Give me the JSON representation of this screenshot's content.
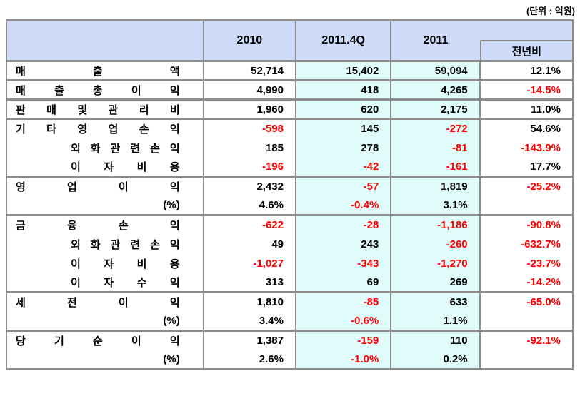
{
  "unit_note": "(단위 : 억원)",
  "header": {
    "label_col": "",
    "cols": [
      "2010",
      "2011.4Q",
      "2011"
    ],
    "yoy": "전년비"
  },
  "colors": {
    "header_bg": "#cedcfa",
    "highlight_column_bg": "#e0fcfa",
    "negative_text": "#ff0000",
    "border_gray": "#8c8c8c"
  },
  "rows": [
    {
      "label": "매출액",
      "type": "main",
      "sep": true,
      "values": [
        "52,714",
        "15,402",
        "59,094",
        "12.1%"
      ]
    },
    {
      "label": "매출총이익",
      "type": "main",
      "sep": true,
      "values": [
        "4,990",
        "418",
        "4,265",
        "-14.5%"
      ]
    },
    {
      "label": "판매및관리비",
      "type": "main",
      "sep": true,
      "values": [
        "1,960",
        "620",
        "2,175",
        "11.0%"
      ]
    },
    {
      "label": "기타영업손익",
      "type": "main",
      "sep": false,
      "values": [
        "-598",
        "145",
        "-272",
        "54.6%"
      ]
    },
    {
      "label": "외화관련손익",
      "type": "sub",
      "sep": false,
      "values": [
        "185",
        "278",
        "-81",
        "-143.9%"
      ]
    },
    {
      "label": "이자비용",
      "type": "sub",
      "sep": true,
      "values": [
        "-196",
        "-42",
        "-161",
        "17.7%"
      ]
    },
    {
      "label": "영업이익",
      "type": "main",
      "sep": false,
      "values": [
        "2,432",
        "-57",
        "1,819",
        "-25.2%"
      ]
    },
    {
      "label": "(%)",
      "type": "pct",
      "sep": true,
      "values": [
        "4.6%",
        "-0.4%",
        "3.1%",
        ""
      ]
    },
    {
      "label": "금융손익",
      "type": "main",
      "sep": false,
      "values": [
        "-622",
        "-28",
        "-1,186",
        "-90.8%"
      ]
    },
    {
      "label": "외화관련손익",
      "type": "sub",
      "sep": false,
      "values": [
        "49",
        "243",
        "-260",
        "-632.7%"
      ]
    },
    {
      "label": "이자비용",
      "type": "sub",
      "sep": false,
      "values": [
        "-1,027",
        "-343",
        "-1,270",
        "-23.7%"
      ]
    },
    {
      "label": "이자수익",
      "type": "sub",
      "sep": true,
      "values": [
        "313",
        "69",
        "269",
        "-14.2%"
      ]
    },
    {
      "label": "세전이익",
      "type": "main",
      "sep": false,
      "values": [
        "1,810",
        "-85",
        "633",
        "-65.0%"
      ]
    },
    {
      "label": "(%)",
      "type": "pct",
      "sep": true,
      "values": [
        "3.4%",
        "-0.6%",
        "1.1%",
        ""
      ]
    },
    {
      "label": "당기순이익",
      "type": "main",
      "sep": false,
      "values": [
        "1,387",
        "-159",
        "110",
        "-92.1%"
      ]
    },
    {
      "label": "(%)",
      "type": "pct",
      "sep": false,
      "values": [
        "2.6%",
        "-1.0%",
        "0.2%",
        ""
      ]
    }
  ]
}
